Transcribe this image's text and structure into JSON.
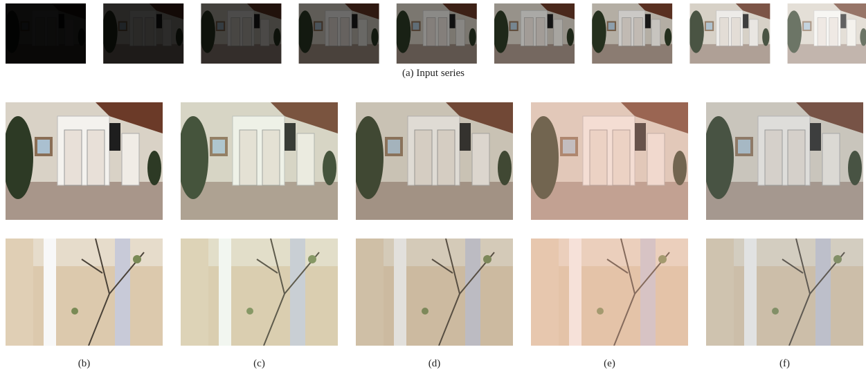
{
  "caption": "(a) Input series",
  "panels": [
    {
      "label": "(b)"
    },
    {
      "label": "(c)"
    },
    {
      "label": "(d)"
    },
    {
      "label": "(e)"
    },
    {
      "label": "(f)"
    }
  ]
}
